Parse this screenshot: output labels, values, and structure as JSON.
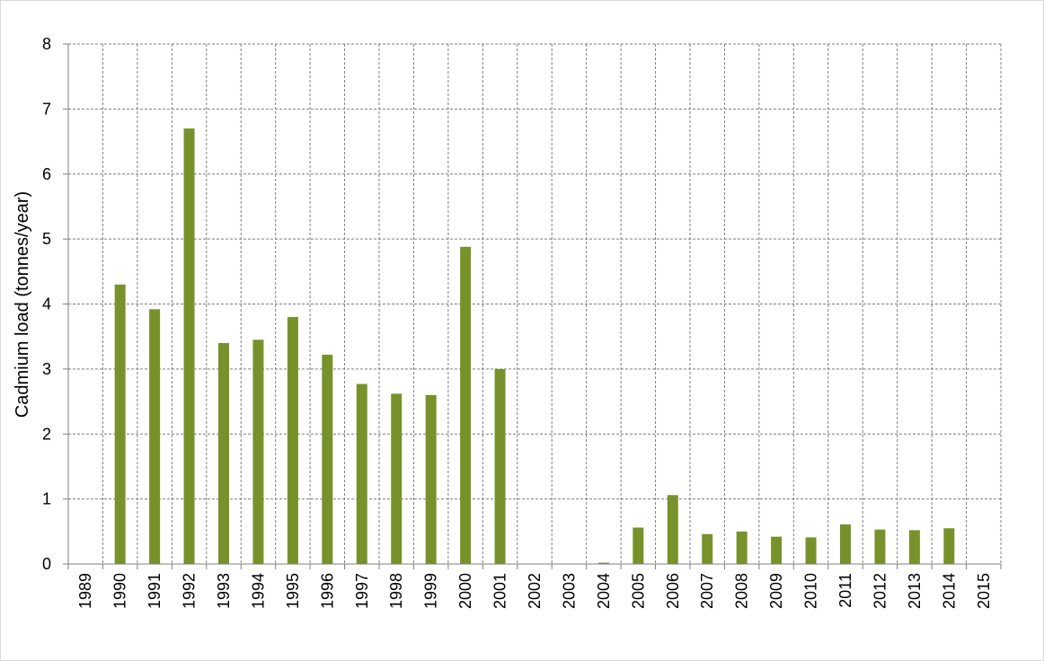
{
  "chart_data": {
    "type": "bar",
    "title": "",
    "xlabel": "",
    "ylabel": "Cadmium load (tonnes/year)",
    "ylim": [
      0,
      8
    ],
    "yticks": [
      0,
      1,
      2,
      3,
      4,
      5,
      6,
      7,
      8
    ],
    "grid": true,
    "legend": "none",
    "bar_color": "#77922a",
    "categories": [
      "1989",
      "1990",
      "1991",
      "1992",
      "1993",
      "1994",
      "1995",
      "1996",
      "1997",
      "1998",
      "1999",
      "2000",
      "2001",
      "2002",
      "2003",
      "2004",
      "2005",
      "2006",
      "2007",
      "2008",
      "2009",
      "2010",
      "2011",
      "2012",
      "2013",
      "2014",
      "2015"
    ],
    "values": [
      null,
      4.3,
      3.92,
      6.7,
      3.4,
      3.45,
      3.8,
      3.22,
      2.77,
      2.62,
      2.6,
      4.88,
      3.0,
      null,
      null,
      0.02,
      0.56,
      1.06,
      0.46,
      0.5,
      0.42,
      0.41,
      0.61,
      0.53,
      0.52,
      0.55,
      null
    ]
  }
}
